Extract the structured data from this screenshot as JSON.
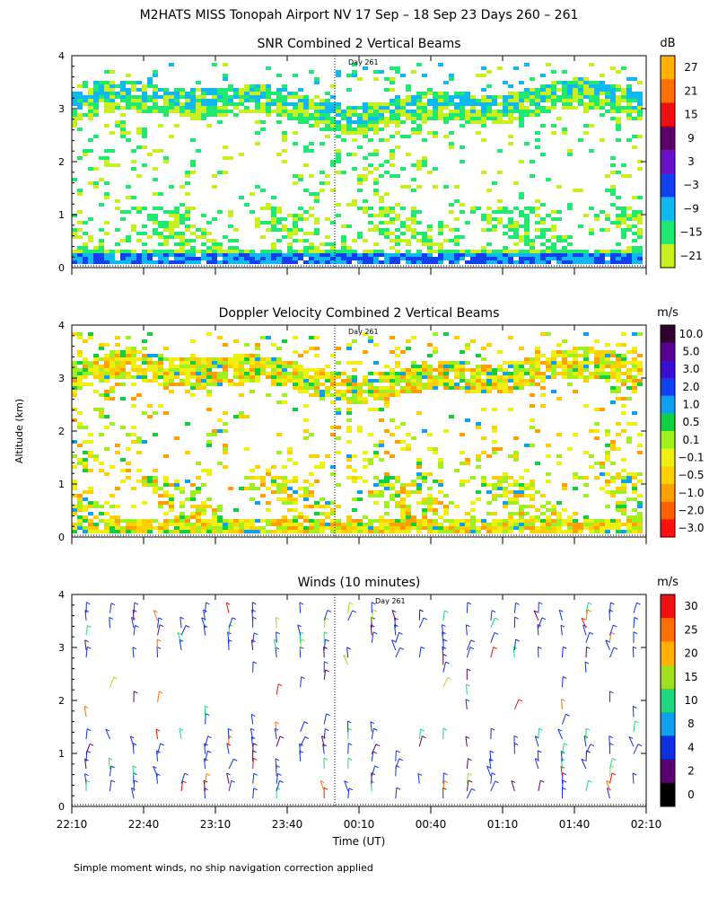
{
  "title": "M2HATS MISS Tonopah Airport NV  17 Sep – 18 Sep 23 Days 260 – 261",
  "footnote": "Simple moment winds, no ship navigation correction applied",
  "xlabel": "Time (UT)",
  "ylabel": "Altitude (km)",
  "day_marker": "Day 261",
  "chart_data": [
    {
      "type": "heatmap",
      "title": "SNR Combined 2 Vertical Beams",
      "unit": "dB",
      "ylim": [
        0,
        4
      ],
      "yticks": [
        "0",
        "1",
        "2",
        "3",
        "4"
      ],
      "xticks": [],
      "colorbar": {
        "labels": [
          "27",
          "21",
          "15",
          "9",
          "3",
          "−3",
          "−9",
          "−15",
          "−21"
        ],
        "colors": [
          "#ffb000",
          "#ff7000",
          "#ee1010",
          "#5a0068",
          "#6a10c8",
          "#1040f0",
          "#10b8f0",
          "#20e870",
          "#c8f020"
        ]
      }
    },
    {
      "type": "heatmap",
      "title": "Doppler Velocity Combined 2 Vertical Beams",
      "unit": "m/s",
      "ylim": [
        0,
        4
      ],
      "yticks": [
        "0",
        "1",
        "2",
        "3",
        "4"
      ],
      "xticks": [],
      "colorbar": {
        "labels": [
          "10.0",
          "5.0",
          "3.0",
          "2.0",
          "1.0",
          "0.5",
          "0.1",
          "−0.1",
          "−0.5",
          "−1.0",
          "−2.0",
          "−3.0"
        ],
        "colors": [
          "#300030",
          "#5a0090",
          "#3a10d0",
          "#1040f0",
          "#10a0f0",
          "#10d040",
          "#a0f020",
          "#f0f010",
          "#ffd000",
          "#ffa000",
          "#ff6000",
          "#ff1010"
        ]
      }
    },
    {
      "type": "scatter",
      "title": "Winds (10 minutes)",
      "unit": "m/s",
      "ylim": [
        0,
        4
      ],
      "yticks": [
        "0",
        "1",
        "2",
        "3",
        "4"
      ],
      "xticks": [
        "22:10",
        "22:40",
        "23:10",
        "23:40",
        "00:10",
        "00:40",
        "01:10",
        "01:40",
        "02:10"
      ],
      "colorbar": {
        "labels": [
          "30",
          "25",
          "20",
          "15",
          "10",
          "8",
          "4",
          "2",
          "0"
        ],
        "colors": [
          "#ee1010",
          "#ff7000",
          "#ffb000",
          "#a0e020",
          "#20d880",
          "#10a0f0",
          "#1030e0",
          "#5a0070",
          "#000000"
        ]
      }
    }
  ]
}
